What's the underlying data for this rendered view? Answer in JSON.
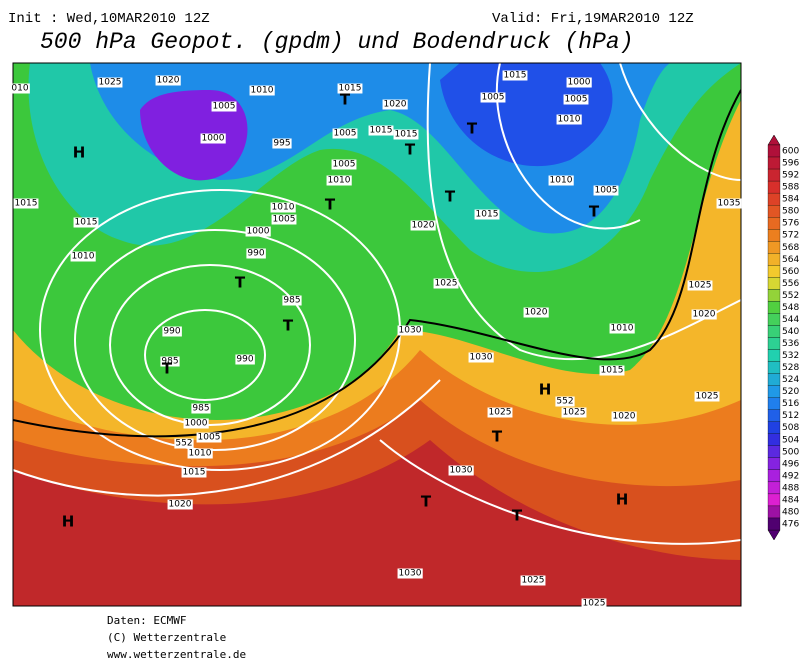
{
  "header": {
    "init": "Init : Wed,10MAR2010 12Z",
    "valid": "Valid: Fri,19MAR2010 12Z",
    "title": "500 hPa Geopot. (gpdm) und Bodendruck (hPa)"
  },
  "colorbar": {
    "ticks": [
      600,
      596,
      592,
      588,
      584,
      580,
      576,
      572,
      568,
      564,
      560,
      556,
      552,
      548,
      544,
      540,
      536,
      532,
      528,
      524,
      520,
      516,
      512,
      508,
      504,
      500,
      496,
      492,
      488,
      484,
      480,
      476
    ]
  },
  "map_labels": [
    "010",
    "1025",
    "1020",
    "1010",
    "1015",
    "1020",
    "1005",
    "1000",
    "995",
    "1005",
    "1015",
    "1015",
    "1005",
    "1010",
    "1010",
    "1005",
    "1000",
    "990",
    "985",
    "990",
    "985",
    "990",
    "985",
    "1000",
    "1005",
    "552",
    "1010",
    "1015",
    "1020",
    "1015",
    "1015",
    "1010",
    "1020",
    "1015",
    "1025",
    "1020",
    "1030",
    "1025",
    "1030",
    "1030",
    "1025",
    "1025",
    "1010",
    "1015",
    "1025",
    "1020",
    "1025",
    "1020",
    "1025",
    "1035",
    "1005",
    "1010",
    "1015",
    "1000",
    "1005",
    "1010",
    "1005",
    "552",
    "1030",
    "H",
    "H",
    "H",
    "H",
    "T",
    "T",
    "T",
    "T",
    "T",
    "T",
    "T",
    "T",
    "T",
    "T",
    "T",
    "T"
  ],
  "footer": [
    "Daten: ECMWF",
    "(C) Wetterzentrale",
    "www.wetterzentrale.de"
  ]
}
